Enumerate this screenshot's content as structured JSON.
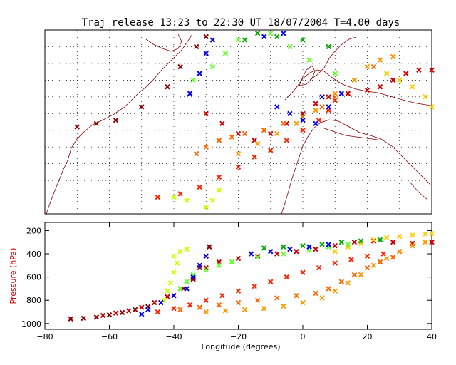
{
  "chart_data": {
    "type": "scatter",
    "title": "Traj release 13:23 to 22:30 UT 18/07/2004    T=4.00 days",
    "map_panel": {
      "description_text": "",
      "lon_range": [
        -80,
        40
      ],
      "lat_range": [
        20,
        75
      ],
      "grid": true
    },
    "profile_panel": {
      "type": "scatter",
      "xlabel": "Longitude  (degrees)",
      "ylabel": "Pressure  (hPa)",
      "xlim": [
        -80,
        40
      ],
      "ylim": [
        1050,
        130
      ],
      "x_ticks": [
        -80,
        -60,
        -40,
        -20,
        0,
        20,
        40
      ],
      "y_ticks": [
        200,
        400,
        600,
        800,
        1000
      ],
      "ylabel_color": "#cc0000"
    },
    "colors": [
      "#8b0000",
      "#cc0000",
      "#ff2200",
      "#ff6600",
      "#ff9900",
      "#ffcc00",
      "#ccff00",
      "#66ff33",
      "#00aa00",
      "#0000ee"
    ],
    "trajectory_groups": [
      {
        "color": "#8b0000",
        "points": [
          [
            -72,
            960
          ],
          [
            -68,
            955
          ],
          [
            -64,
            945
          ],
          [
            -60,
            925
          ],
          [
            -56,
            905
          ],
          [
            -52,
            880
          ],
          [
            -48,
            855
          ],
          [
            -44,
            820
          ],
          [
            -40,
            760
          ],
          [
            -37,
            700
          ],
          [
            -34,
            620
          ],
          [
            -32,
            520
          ],
          [
            -30,
            420
          ],
          [
            -29,
            340
          ]
        ]
      },
      {
        "color": "#cc0000",
        "points": [
          [
            -62,
            930
          ],
          [
            -58,
            910
          ],
          [
            -54,
            890
          ],
          [
            -50,
            860
          ],
          [
            -46,
            820
          ],
          [
            -42,
            770
          ],
          [
            -38,
            700
          ],
          [
            -34,
            610
          ],
          [
            -30,
            520
          ],
          [
            -26,
            470
          ],
          [
            -20,
            440
          ],
          [
            -14,
            420
          ],
          [
            -8,
            400
          ],
          [
            -2,
            380
          ],
          [
            4,
            360
          ],
          [
            10,
            330
          ],
          [
            16,
            300
          ],
          [
            22,
            290
          ],
          [
            28,
            300
          ],
          [
            34,
            310
          ],
          [
            40,
            300
          ]
        ]
      },
      {
        "color": "#ff2200",
        "points": [
          [
            -45,
            900
          ],
          [
            -40,
            870
          ],
          [
            -35,
            840
          ],
          [
            -30,
            800
          ],
          [
            -25,
            760
          ],
          [
            -20,
            720
          ],
          [
            -15,
            680
          ],
          [
            -10,
            640
          ],
          [
            -5,
            600
          ],
          [
            0,
            560
          ],
          [
            5,
            520
          ],
          [
            10,
            480
          ],
          [
            15,
            450
          ],
          [
            20,
            420
          ],
          [
            25,
            400
          ],
          [
            30,
            380
          ]
        ]
      },
      {
        "color": "#ff6600",
        "points": [
          [
            -38,
            880
          ],
          [
            -32,
            860
          ],
          [
            -26,
            840
          ],
          [
            -20,
            820
          ],
          [
            -14,
            800
          ],
          [
            -8,
            780
          ],
          [
            -2,
            760
          ],
          [
            4,
            740
          ],
          [
            8,
            700
          ],
          [
            12,
            640
          ],
          [
            16,
            580
          ],
          [
            20,
            520
          ],
          [
            24,
            470
          ],
          [
            28,
            430
          ]
        ]
      },
      {
        "color": "#ff9900",
        "points": [
          [
            -30,
            900
          ],
          [
            -24,
            890
          ],
          [
            -18,
            880
          ],
          [
            -12,
            870
          ],
          [
            -6,
            850
          ],
          [
            0,
            820
          ],
          [
            6,
            780
          ],
          [
            10,
            720
          ],
          [
            14,
            650
          ],
          [
            18,
            580
          ],
          [
            22,
            500
          ],
          [
            26,
            440
          ],
          [
            30,
            380
          ],
          [
            34,
            330
          ],
          [
            38,
            300
          ]
        ]
      },
      {
        "color": "#ffcc00",
        "points": [
          [
            10,
            380
          ],
          [
            14,
            340
          ],
          [
            18,
            310
          ],
          [
            22,
            280
          ],
          [
            26,
            260
          ],
          [
            30,
            250
          ],
          [
            34,
            240
          ],
          [
            38,
            230
          ],
          [
            40,
            225
          ]
        ]
      },
      {
        "color": "#ccff00",
        "points": [
          [
            -43,
            800
          ],
          [
            -42,
            720
          ],
          [
            -41,
            650
          ],
          [
            -40,
            560
          ],
          [
            -39,
            480
          ],
          [
            -40,
            420
          ],
          [
            -38,
            380
          ],
          [
            -36,
            360
          ]
        ]
      },
      {
        "color": "#66ff33",
        "points": [
          [
            -38,
            700
          ],
          [
            -36,
            640
          ],
          [
            -34,
            580
          ],
          [
            -30,
            540
          ],
          [
            -26,
            500
          ],
          [
            -22,
            470
          ],
          [
            -14,
            430
          ],
          [
            -6,
            400
          ],
          [
            2,
            370
          ],
          [
            8,
            340
          ],
          [
            14,
            320
          ]
        ]
      },
      {
        "color": "#00aa00",
        "points": [
          [
            -12,
            350
          ],
          [
            -6,
            340
          ],
          [
            0,
            330
          ],
          [
            6,
            320
          ],
          [
            12,
            300
          ],
          [
            18,
            290
          ],
          [
            24,
            280
          ]
        ]
      },
      {
        "color": "#0000ee",
        "points": [
          [
            -50,
            920
          ],
          [
            -48,
            880
          ],
          [
            -44,
            820
          ],
          [
            -40,
            760
          ],
          [
            -36,
            700
          ],
          [
            -34,
            600
          ],
          [
            -32,
            500
          ],
          [
            -30,
            420
          ],
          [
            -16,
            400
          ],
          [
            -10,
            380
          ],
          [
            -4,
            360
          ],
          [
            2,
            340
          ],
          [
            8,
            320
          ]
        ]
      }
    ]
  }
}
